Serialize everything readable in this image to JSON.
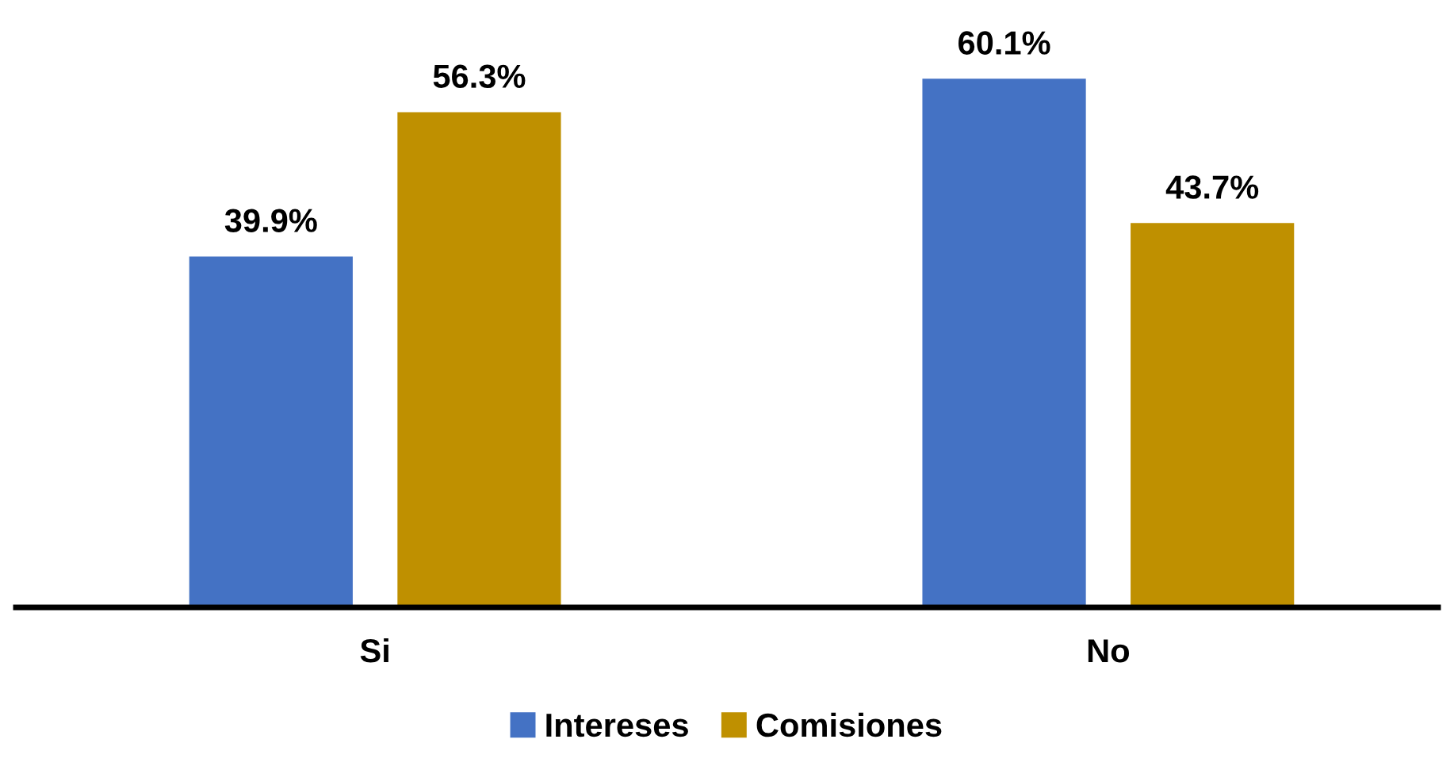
{
  "chart_data": {
    "type": "bar",
    "categories": [
      "Si",
      "No"
    ],
    "series": [
      {
        "name": "Intereses",
        "color": "#4472c4",
        "values": [
          39.9,
          60.1
        ],
        "value_labels": [
          "39.9%",
          "60.1%"
        ]
      },
      {
        "name": "Comisiones",
        "color": "#bf9000",
        "values": [
          56.3,
          43.7
        ],
        "value_labels": [
          "56.3%",
          "43.7%"
        ]
      }
    ],
    "legend": "bottom"
  }
}
